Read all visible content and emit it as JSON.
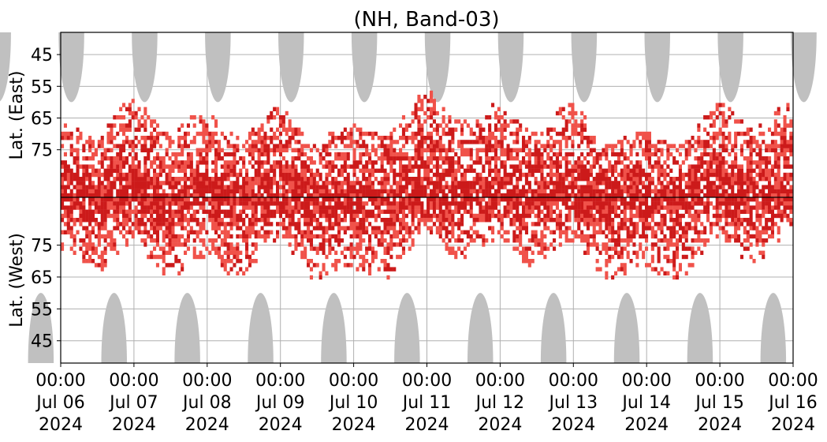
{
  "chart_data": {
    "type": "heatmap",
    "title": "(NH, Band-03)",
    "xlabel": "",
    "ylabel_top": "Lat. (East)",
    "ylabel_bottom": "Lat. (West)",
    "x_tick_labels": [
      {
        "time": "00:00",
        "date": "Jul 06",
        "year": "2024"
      },
      {
        "time": "00:00",
        "date": "Jul 07",
        "year": "2024"
      },
      {
        "time": "00:00",
        "date": "Jul 08",
        "year": "2024"
      },
      {
        "time": "00:00",
        "date": "Jul 09",
        "year": "2024"
      },
      {
        "time": "00:00",
        "date": "Jul 10",
        "year": "2024"
      },
      {
        "time": "00:00",
        "date": "Jul 11",
        "year": "2024"
      },
      {
        "time": "00:00",
        "date": "Jul 12",
        "year": "2024"
      },
      {
        "time": "00:00",
        "date": "Jul 13",
        "year": "2024"
      },
      {
        "time": "00:00",
        "date": "Jul 14",
        "year": "2024"
      },
      {
        "time": "00:00",
        "date": "Jul 15",
        "year": "2024"
      },
      {
        "time": "00:00",
        "date": "Jul 16",
        "year": "2024"
      }
    ],
    "xlim": [
      "2024-07-06 00:00",
      "2024-07-16 00:00"
    ],
    "y_ticks_east": [
      45,
      55,
      65,
      75
    ],
    "y_ticks_west": [
      75,
      65,
      55,
      45
    ],
    "ylim_east": [
      38,
      90
    ],
    "ylim_west": [
      90,
      38
    ],
    "grid": true,
    "colors": {
      "daylight": "#c0c0c0",
      "echo_weak": "#f0524a",
      "echo_strong": "#cc1a1a",
      "grid": "#b0b0b0",
      "divider": "#000000"
    },
    "daylight_regions": {
      "east_peak_hour_utc": 3.5,
      "west_peak_hour_utc": 17.5,
      "min_lat_reached": 38,
      "max_lat_reached": 60
    },
    "echo_activity": [
      {
        "day": "Jul 06",
        "east_max_lat": 68,
        "west_max_lat": 70
      },
      {
        "day": "Jul 07",
        "east_max_lat": 62,
        "west_max_lat": 72
      },
      {
        "day": "Jul 08",
        "east_max_lat": 67,
        "west_max_lat": 67
      },
      {
        "day": "Jul 09",
        "east_max_lat": 65,
        "west_max_lat": 73
      },
      {
        "day": "Jul 10",
        "east_max_lat": 70,
        "west_max_lat": 64
      },
      {
        "day": "Jul 11",
        "east_max_lat": 59,
        "west_max_lat": 76
      },
      {
        "day": "Jul 12",
        "east_max_lat": 64,
        "west_max_lat": 73
      },
      {
        "day": "Jul 13",
        "east_max_lat": 64,
        "west_max_lat": 73
      },
      {
        "day": "Jul 14",
        "east_max_lat": 73,
        "west_max_lat": 64
      },
      {
        "day": "Jul 15",
        "east_max_lat": 63,
        "west_max_lat": 74
      }
    ]
  }
}
